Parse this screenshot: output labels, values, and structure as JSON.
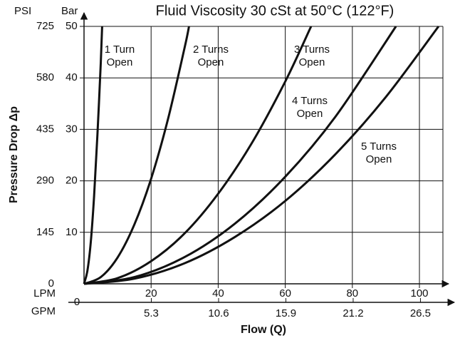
{
  "chart_data": {
    "type": "line",
    "title": "Fluid Viscosity 30 cSt at 50°C (122°F)",
    "x_label": "Flow (Q)",
    "y_label": "Pressure Drop Δp",
    "y_unit": "Bar",
    "y2_unit": "PSI",
    "x_unit": "LPM",
    "x2_unit": "GPM",
    "xlim": [
      0,
      107
    ],
    "xticks": [
      0,
      20,
      40,
      60,
      80,
      100
    ],
    "x2lim": [
      0,
      28.27
    ],
    "x2ticks": [
      5.3,
      10.6,
      15.9,
      21.2,
      26.5
    ],
    "ylim": [
      0,
      50
    ],
    "yticks": [
      10,
      20,
      30,
      40,
      50
    ],
    "y2lim": [
      0,
      725
    ],
    "y2ticks": [
      0,
      145,
      290,
      435,
      580,
      725
    ],
    "grid": true,
    "series": [
      {
        "name": [
          "1 Turn",
          "Open"
        ],
        "color": "#111111",
        "x": [
          0,
          1,
          2,
          3,
          4,
          5,
          5.4
        ],
        "values": [
          0,
          2.5,
          8,
          17,
          29,
          43,
          50
        ]
      },
      {
        "name": [
          "2 Turns",
          "Open"
        ],
        "color": "#111111",
        "x": [
          0,
          5,
          10,
          15,
          20,
          25,
          30,
          31.3
        ],
        "values": [
          0,
          1.3,
          5.1,
          11.5,
          20.4,
          31.9,
          45.9,
          50
        ]
      },
      {
        "name": [
          "3 Turns",
          "Open"
        ],
        "color": "#111111",
        "x": [
          0,
          10,
          20,
          30,
          40,
          50,
          60,
          67.7
        ],
        "values": [
          0,
          1.1,
          4.4,
          9.8,
          17.5,
          27.3,
          39.3,
          50
        ]
      },
      {
        "name": [
          "4 Turns",
          "Open"
        ],
        "color": "#111111",
        "x": [
          0,
          15,
          30,
          45,
          60,
          75,
          93
        ],
        "values": [
          0,
          1.3,
          5.2,
          11.7,
          20.8,
          32.5,
          50
        ]
      },
      {
        "name": [
          "5 Turns",
          "Open"
        ],
        "color": "#111111",
        "x": [
          0,
          15,
          30,
          45,
          60,
          75,
          90,
          105.7
        ],
        "values": [
          0,
          1,
          4,
          9.1,
          16.1,
          25.2,
          36.3,
          50
        ]
      }
    ]
  }
}
